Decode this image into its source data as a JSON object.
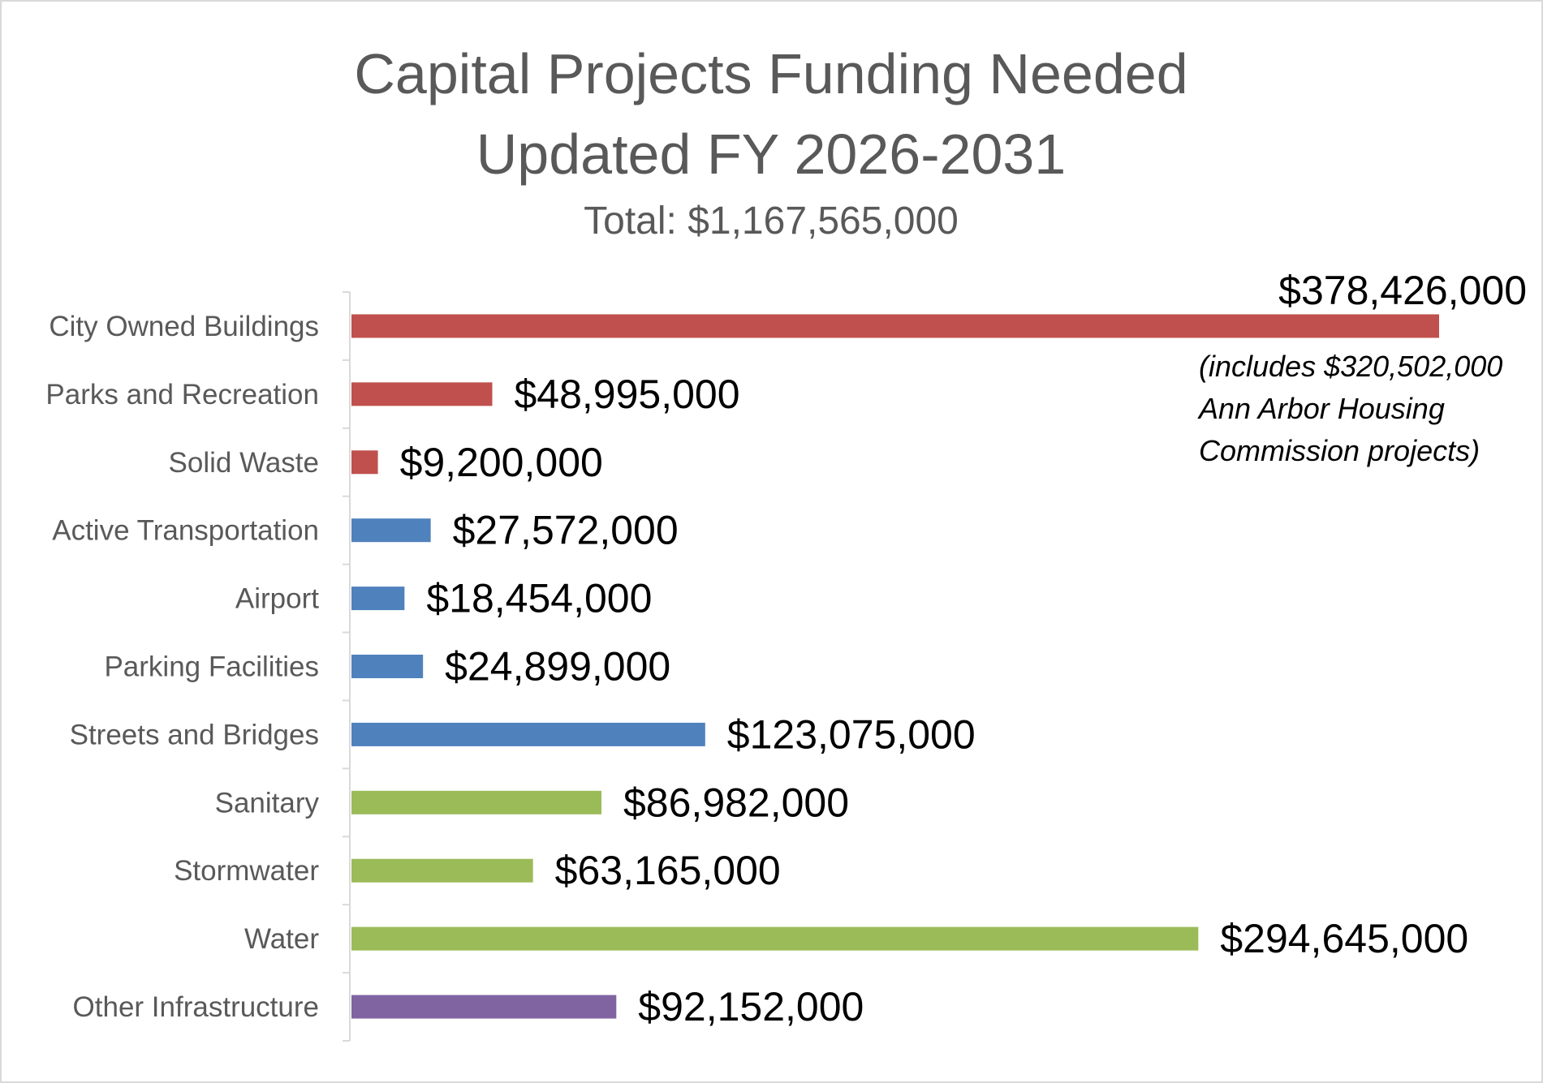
{
  "chart_data": {
    "type": "bar",
    "orientation": "horizontal",
    "title": [
      "Capital Projects Funding Needed",
      "Updated FY 2026-2031"
    ],
    "subtitle": "Total: $1,167,565,000",
    "categories": [
      "City Owned Buildings",
      "Parks and Recreation",
      "Solid Waste",
      "Active Transportation",
      "Airport",
      "Parking Facilities",
      "Streets and Bridges",
      "Sanitary",
      "Stormwater",
      "Water",
      "Other Infrastructure"
    ],
    "values": [
      378426000,
      48995000,
      9200000,
      27572000,
      18454000,
      24899000,
      123075000,
      86982000,
      63165000,
      294645000,
      92152000
    ],
    "value_labels": [
      "$378,426,000",
      "$48,995,000",
      "$9,200,000",
      "$27,572,000",
      "$18,454,000",
      "$24,899,000",
      "$123,075,000",
      "$86,982,000",
      "$63,165,000",
      "$294,645,000",
      "$92,152,000"
    ],
    "colors": [
      "#c0504d",
      "#c0504d",
      "#c0504d",
      "#4f81bd",
      "#4f81bd",
      "#4f81bd",
      "#4f81bd",
      "#9bbb59",
      "#9bbb59",
      "#9bbb59",
      "#8064a2"
    ],
    "annotation": [
      "(includes $320,502,000",
      "Ann Arbor Housing",
      "Commission projects)"
    ],
    "xlim": [
      0,
      378426000
    ],
    "xlabel": "",
    "ylabel": "",
    "grid": false,
    "legend": "none"
  }
}
